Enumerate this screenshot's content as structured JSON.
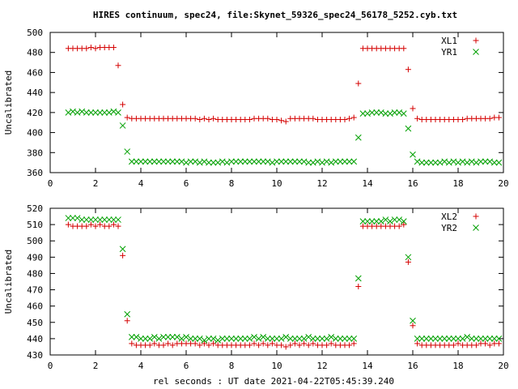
{
  "title": "HIRES continuum, spec24, file:Skynet_59326_spec24_56178_5252.cyb.txt",
  "xlabel": "rel seconds : UT date 2021-04-22T05:45:39.240",
  "colors": {
    "red": "#d40000",
    "green": "#00a000"
  },
  "chart_data": [
    {
      "type": "scatter",
      "ylabel": "Uncalibrated",
      "xlim": [
        0,
        20
      ],
      "ylim": [
        360,
        500
      ],
      "xticks": [
        0,
        2,
        4,
        6,
        8,
        10,
        12,
        14,
        16,
        18,
        20
      ],
      "yticks": [
        360,
        380,
        400,
        420,
        440,
        460,
        480,
        500
      ],
      "legend_position": "top-right",
      "series": [
        {
          "name": "XL1",
          "marker": "plus",
          "color": "#d40000",
          "x": [
            0.8,
            1.0,
            1.2,
            1.4,
            1.6,
            1.8,
            2.0,
            2.2,
            2.4,
            2.6,
            2.8,
            3.0,
            3.2,
            3.4,
            3.6,
            3.8,
            4.0,
            4.2,
            4.4,
            4.6,
            4.8,
            5.0,
            5.2,
            5.4,
            5.6,
            5.8,
            6.0,
            6.2,
            6.4,
            6.6,
            6.8,
            7.0,
            7.2,
            7.4,
            7.6,
            7.8,
            8.0,
            8.2,
            8.4,
            8.6,
            8.8,
            9.0,
            9.2,
            9.4,
            9.6,
            9.8,
            10.0,
            10.2,
            10.4,
            10.6,
            10.8,
            11.0,
            11.2,
            11.4,
            11.6,
            11.8,
            12.0,
            12.2,
            12.4,
            12.6,
            12.8,
            13.0,
            13.2,
            13.4,
            13.6,
            13.8,
            14.0,
            14.2,
            14.4,
            14.6,
            14.8,
            15.0,
            15.2,
            15.4,
            15.6,
            15.8,
            16.0,
            16.2,
            16.4,
            16.6,
            16.8,
            17.0,
            17.2,
            17.4,
            17.6,
            17.8,
            18.0,
            18.2,
            18.4,
            18.6,
            18.8,
            19.0,
            19.2,
            19.4,
            19.6,
            19.8
          ],
          "y": [
            484,
            484,
            484,
            484,
            484,
            485,
            484,
            485,
            485,
            485,
            485,
            467,
            428,
            415,
            414,
            414,
            414,
            414,
            414,
            414,
            414,
            414,
            414,
            414,
            414,
            414,
            414,
            414,
            414,
            413,
            414,
            413,
            414,
            413,
            413,
            413,
            413,
            413,
            413,
            413,
            413,
            414,
            414,
            414,
            414,
            413,
            413,
            412,
            411,
            414,
            414,
            414,
            414,
            414,
            414,
            413,
            413,
            413,
            413,
            413,
            413,
            413,
            414,
            415,
            449,
            484,
            484,
            484,
            484,
            484,
            484,
            484,
            484,
            484,
            484,
            463,
            424,
            414,
            413,
            413,
            413,
            413,
            413,
            413,
            413,
            413,
            413,
            413,
            414,
            414,
            414,
            414,
            414,
            414,
            415,
            415
          ]
        },
        {
          "name": "YR1",
          "marker": "cross",
          "color": "#00a000",
          "x": [
            0.8,
            1.0,
            1.2,
            1.4,
            1.6,
            1.8,
            2.0,
            2.2,
            2.4,
            2.6,
            2.8,
            3.0,
            3.2,
            3.4,
            3.6,
            3.8,
            4.0,
            4.2,
            4.4,
            4.6,
            4.8,
            5.0,
            5.2,
            5.4,
            5.6,
            5.8,
            6.0,
            6.2,
            6.4,
            6.6,
            6.8,
            7.0,
            7.2,
            7.4,
            7.6,
            7.8,
            8.0,
            8.2,
            8.4,
            8.6,
            8.8,
            9.0,
            9.2,
            9.4,
            9.6,
            9.8,
            10.0,
            10.2,
            10.4,
            10.6,
            10.8,
            11.0,
            11.2,
            11.4,
            11.6,
            11.8,
            12.0,
            12.2,
            12.4,
            12.6,
            12.8,
            13.0,
            13.2,
            13.4,
            13.6,
            13.8,
            14.0,
            14.2,
            14.4,
            14.6,
            14.8,
            15.0,
            15.2,
            15.4,
            15.6,
            15.8,
            16.0,
            16.2,
            16.4,
            16.6,
            16.8,
            17.0,
            17.2,
            17.4,
            17.6,
            17.8,
            18.0,
            18.2,
            18.4,
            18.6,
            18.8,
            19.0,
            19.2,
            19.4,
            19.6,
            19.8
          ],
          "y": [
            420,
            421,
            420,
            421,
            420,
            420,
            420,
            420,
            420,
            420,
            421,
            420,
            407,
            381,
            371,
            371,
            371,
            371,
            371,
            371,
            371,
            371,
            371,
            371,
            371,
            371,
            370,
            371,
            371,
            370,
            371,
            370,
            370,
            370,
            371,
            370,
            371,
            371,
            371,
            371,
            371,
            371,
            371,
            371,
            371,
            370,
            371,
            371,
            371,
            371,
            371,
            371,
            371,
            370,
            370,
            371,
            370,
            371,
            370,
            371,
            371,
            371,
            371,
            371,
            395,
            419,
            419,
            420,
            420,
            420,
            419,
            419,
            420,
            420,
            419,
            404,
            378,
            371,
            370,
            370,
            370,
            370,
            370,
            371,
            370,
            371,
            370,
            371,
            370,
            371,
            370,
            371,
            371,
            371,
            370,
            370
          ]
        }
      ]
    },
    {
      "type": "scatter",
      "ylabel": "Uncalibrated",
      "xlabel": "rel seconds : UT date 2021-04-22T05:45:39.240",
      "xlim": [
        0,
        20
      ],
      "ylim": [
        430,
        520
      ],
      "xticks": [
        0,
        2,
        4,
        6,
        8,
        10,
        12,
        14,
        16,
        18,
        20
      ],
      "yticks": [
        430,
        440,
        450,
        460,
        470,
        480,
        490,
        500,
        510,
        520
      ],
      "legend_position": "top-right",
      "series": [
        {
          "name": "XL2",
          "marker": "plus",
          "color": "#d40000",
          "x": [
            0.8,
            1.0,
            1.2,
            1.4,
            1.6,
            1.8,
            2.0,
            2.2,
            2.4,
            2.6,
            2.8,
            3.0,
            3.2,
            3.4,
            3.6,
            3.8,
            4.0,
            4.2,
            4.4,
            4.6,
            4.8,
            5.0,
            5.2,
            5.4,
            5.6,
            5.8,
            6.0,
            6.2,
            6.4,
            6.6,
            6.8,
            7.0,
            7.2,
            7.4,
            7.6,
            7.8,
            8.0,
            8.2,
            8.4,
            8.6,
            8.8,
            9.0,
            9.2,
            9.4,
            9.6,
            9.8,
            10.0,
            10.2,
            10.4,
            10.6,
            10.8,
            11.0,
            11.2,
            11.4,
            11.6,
            11.8,
            12.0,
            12.2,
            12.4,
            12.6,
            12.8,
            13.0,
            13.2,
            13.4,
            13.6,
            13.8,
            14.0,
            14.2,
            14.4,
            14.6,
            14.8,
            15.0,
            15.2,
            15.4,
            15.6,
            15.8,
            16.0,
            16.2,
            16.4,
            16.6,
            16.8,
            17.0,
            17.2,
            17.4,
            17.6,
            17.8,
            18.0,
            18.2,
            18.4,
            18.6,
            18.8,
            19.0,
            19.2,
            19.4,
            19.6,
            19.8
          ],
          "y": [
            510,
            509,
            509,
            509,
            509,
            510,
            509,
            510,
            509,
            509,
            510,
            509,
            491,
            451,
            437,
            436,
            436,
            436,
            436,
            437,
            436,
            436,
            437,
            436,
            437,
            437,
            437,
            437,
            437,
            436,
            437,
            436,
            437,
            436,
            436,
            436,
            436,
            436,
            436,
            436,
            436,
            437,
            436,
            437,
            436,
            437,
            436,
            436,
            435,
            436,
            437,
            436,
            437,
            436,
            437,
            436,
            436,
            436,
            437,
            436,
            436,
            436,
            436,
            437,
            472,
            509,
            509,
            509,
            509,
            509,
            509,
            509,
            509,
            509,
            510,
            487,
            448,
            437,
            436,
            436,
            436,
            436,
            436,
            436,
            436,
            436,
            437,
            436,
            436,
            436,
            436,
            437,
            437,
            436,
            437,
            437
          ]
        },
        {
          "name": "YR2",
          "marker": "cross",
          "color": "#00a000",
          "x": [
            0.8,
            1.0,
            1.2,
            1.4,
            1.6,
            1.8,
            2.0,
            2.2,
            2.4,
            2.6,
            2.8,
            3.0,
            3.2,
            3.4,
            3.6,
            3.8,
            4.0,
            4.2,
            4.4,
            4.6,
            4.8,
            5.0,
            5.2,
            5.4,
            5.6,
            5.8,
            6.0,
            6.2,
            6.4,
            6.6,
            6.8,
            7.0,
            7.2,
            7.4,
            7.6,
            7.8,
            8.0,
            8.2,
            8.4,
            8.6,
            8.8,
            9.0,
            9.2,
            9.4,
            9.6,
            9.8,
            10.0,
            10.2,
            10.4,
            10.6,
            10.8,
            11.0,
            11.2,
            11.4,
            11.6,
            11.8,
            12.0,
            12.2,
            12.4,
            12.6,
            12.8,
            13.0,
            13.2,
            13.4,
            13.6,
            13.8,
            14.0,
            14.2,
            14.4,
            14.6,
            14.8,
            15.0,
            15.2,
            15.4,
            15.6,
            15.8,
            16.0,
            16.2,
            16.4,
            16.6,
            16.8,
            17.0,
            17.2,
            17.4,
            17.6,
            17.8,
            18.0,
            18.2,
            18.4,
            18.6,
            18.8,
            19.0,
            19.2,
            19.4,
            19.6,
            19.8
          ],
          "y": [
            514,
            514,
            514,
            513,
            513,
            513,
            513,
            513,
            513,
            513,
            513,
            513,
            495,
            455,
            441,
            441,
            440,
            440,
            440,
            441,
            440,
            441,
            441,
            441,
            441,
            440,
            441,
            440,
            440,
            440,
            439,
            440,
            440,
            439,
            440,
            440,
            440,
            440,
            440,
            440,
            440,
            441,
            440,
            441,
            440,
            440,
            440,
            440,
            441,
            440,
            440,
            440,
            440,
            441,
            440,
            440,
            440,
            440,
            441,
            440,
            440,
            440,
            440,
            440,
            477,
            512,
            512,
            512,
            512,
            512,
            513,
            512,
            513,
            513,
            512,
            490,
            451,
            440,
            440,
            440,
            440,
            440,
            440,
            440,
            440,
            440,
            440,
            440,
            441,
            440,
            440,
            440,
            440,
            440,
            440,
            440
          ]
        }
      ]
    }
  ]
}
